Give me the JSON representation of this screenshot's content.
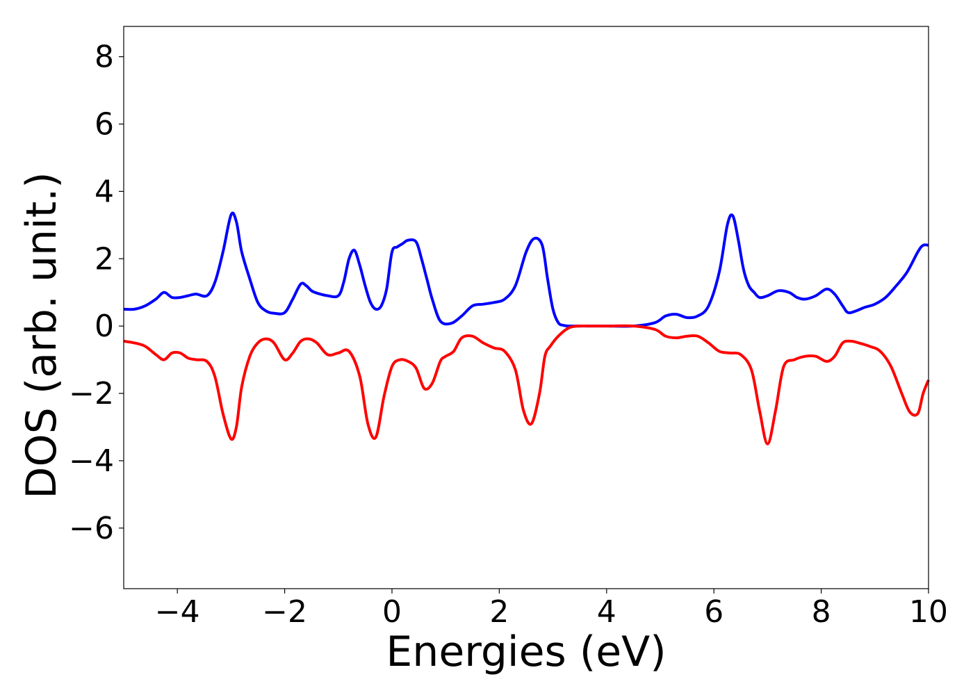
{
  "chart_data": {
    "type": "line",
    "title": "",
    "xlabel": "Energies (eV)",
    "ylabel": "DOS (arb. unit.)",
    "xlim": [
      -5,
      10
    ],
    "ylim": [
      -7.8,
      8.9
    ],
    "xticks": [
      -4,
      -2,
      0,
      2,
      4,
      6,
      8,
      10
    ],
    "xtick_labels": [
      "−4",
      "−2",
      "0",
      "2",
      "4",
      "6",
      "8",
      "10"
    ],
    "yticks": [
      -6,
      -4,
      -2,
      0,
      2,
      4,
      6,
      8
    ],
    "ytick_labels": [
      "−6",
      "−4",
      "−2",
      "0",
      "2",
      "4",
      "6",
      "8"
    ],
    "grid": false,
    "legend": "none",
    "series": [
      {
        "color": "#0000ff",
        "x": [
          -5.0,
          -4.8,
          -4.6,
          -4.4,
          -4.25,
          -4.1,
          -3.95,
          -3.8,
          -3.65,
          -3.45,
          -3.3,
          -3.15,
          -3.0,
          -2.9,
          -2.8,
          -2.65,
          -2.5,
          -2.35,
          -2.2,
          -2.0,
          -1.85,
          -1.7,
          -1.6,
          -1.5,
          -1.4,
          -1.2,
          -1.0,
          -0.9,
          -0.8,
          -0.7,
          -0.6,
          -0.5,
          -0.4,
          -0.3,
          -0.2,
          -0.1,
          0.0,
          0.1,
          0.2,
          0.3,
          0.45,
          0.55,
          0.65,
          0.75,
          0.9,
          1.1,
          1.3,
          1.5,
          1.7,
          1.9,
          2.1,
          2.3,
          2.5,
          2.65,
          2.8,
          2.9,
          3.0,
          3.1,
          3.2,
          3.3,
          3.45,
          3.6,
          3.8,
          4.0,
          4.5,
          4.9,
          5.1,
          5.3,
          5.5,
          5.7,
          5.9,
          6.1,
          6.25,
          6.35,
          6.45,
          6.55,
          6.65,
          6.75,
          6.85,
          7.0,
          7.2,
          7.4,
          7.55,
          7.7,
          7.9,
          8.1,
          8.25,
          8.4,
          8.5,
          8.65,
          8.8,
          9.0,
          9.2,
          9.4,
          9.6,
          9.8,
          9.9,
          10.0
        ],
        "y": [
          0.5,
          0.5,
          0.6,
          0.8,
          1.0,
          0.85,
          0.85,
          0.9,
          0.95,
          0.9,
          1.3,
          2.2,
          3.3,
          3.1,
          2.2,
          1.4,
          0.7,
          0.45,
          0.38,
          0.4,
          0.8,
          1.25,
          1.2,
          1.05,
          0.98,
          0.9,
          0.9,
          1.3,
          2.0,
          2.25,
          1.8,
          1.2,
          0.7,
          0.5,
          0.6,
          1.1,
          2.2,
          2.35,
          2.45,
          2.55,
          2.5,
          2.0,
          1.4,
          0.8,
          0.15,
          0.08,
          0.3,
          0.6,
          0.65,
          0.7,
          0.8,
          1.2,
          2.2,
          2.6,
          2.4,
          1.4,
          0.5,
          0.1,
          0.02,
          0.0,
          0.0,
          0.0,
          0.0,
          0.0,
          0.0,
          0.1,
          0.3,
          0.35,
          0.25,
          0.3,
          0.6,
          1.6,
          3.0,
          3.28,
          2.6,
          1.7,
          1.2,
          1.0,
          0.85,
          0.9,
          1.05,
          1.0,
          0.85,
          0.8,
          0.9,
          1.1,
          0.95,
          0.6,
          0.4,
          0.45,
          0.55,
          0.65,
          0.85,
          1.2,
          1.6,
          2.2,
          2.4,
          2.4
        ]
      },
      {
        "color": "#ff0000",
        "x": [
          -5.0,
          -4.8,
          -4.6,
          -4.4,
          -4.25,
          -4.1,
          -3.95,
          -3.8,
          -3.65,
          -3.45,
          -3.3,
          -3.15,
          -3.0,
          -2.9,
          -2.8,
          -2.65,
          -2.5,
          -2.35,
          -2.2,
          -2.0,
          -1.85,
          -1.7,
          -1.55,
          -1.4,
          -1.2,
          -1.0,
          -0.8,
          -0.6,
          -0.45,
          -0.3,
          -0.15,
          0.0,
          0.15,
          0.3,
          0.45,
          0.6,
          0.75,
          0.9,
          1.0,
          1.15,
          1.3,
          1.5,
          1.7,
          1.9,
          2.1,
          2.3,
          2.45,
          2.6,
          2.75,
          2.85,
          2.95,
          3.1,
          3.3,
          3.5,
          3.65,
          3.8,
          4.0,
          4.5,
          4.9,
          5.1,
          5.3,
          5.5,
          5.7,
          5.9,
          6.1,
          6.3,
          6.5,
          6.7,
          6.85,
          7.0,
          7.15,
          7.3,
          7.5,
          7.7,
          7.9,
          8.1,
          8.25,
          8.4,
          8.55,
          8.7,
          8.9,
          9.1,
          9.3,
          9.5,
          9.65,
          9.8,
          9.9,
          10.0
        ],
        "y": [
          -0.45,
          -0.5,
          -0.6,
          -0.85,
          -1.0,
          -0.8,
          -0.8,
          -0.95,
          -1.0,
          -1.05,
          -1.5,
          -2.6,
          -3.35,
          -3.0,
          -1.8,
          -0.9,
          -0.5,
          -0.38,
          -0.5,
          -1.0,
          -0.8,
          -0.45,
          -0.38,
          -0.5,
          -0.85,
          -0.8,
          -0.75,
          -1.5,
          -2.9,
          -3.3,
          -2.1,
          -1.2,
          -1.0,
          -1.05,
          -1.25,
          -1.85,
          -1.7,
          -1.05,
          -0.9,
          -0.75,
          -0.35,
          -0.3,
          -0.5,
          -0.65,
          -0.75,
          -1.3,
          -2.5,
          -2.9,
          -2.0,
          -0.9,
          -0.6,
          -0.3,
          -0.05,
          0.0,
          0.0,
          0.0,
          0.0,
          0.0,
          -0.1,
          -0.3,
          -0.35,
          -0.3,
          -0.3,
          -0.5,
          -0.75,
          -0.8,
          -0.85,
          -1.3,
          -2.5,
          -3.5,
          -2.5,
          -1.2,
          -1.0,
          -0.9,
          -0.9,
          -1.05,
          -0.9,
          -0.5,
          -0.45,
          -0.5,
          -0.6,
          -0.75,
          -1.2,
          -2.0,
          -2.55,
          -2.6,
          -2.0,
          -1.6
        ]
      }
    ]
  }
}
